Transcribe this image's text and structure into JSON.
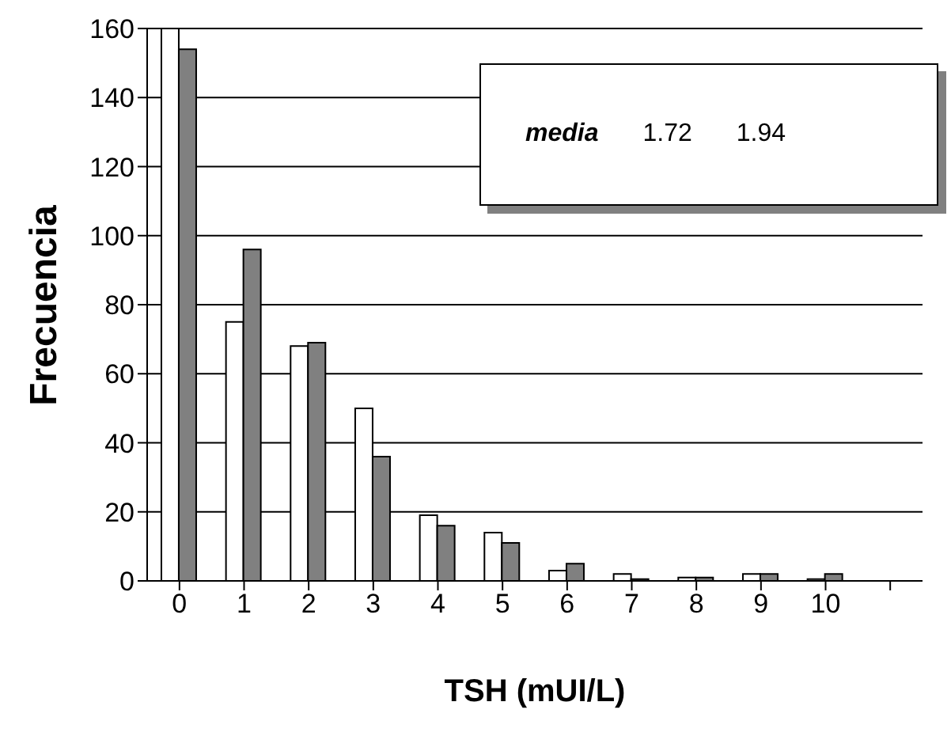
{
  "chart_data": {
    "type": "bar",
    "xlabel": "TSH (mUI/L)",
    "ylabel": "Frecuencia",
    "categories": [
      "0",
      "1",
      "2",
      "3",
      "4",
      "5",
      "6",
      "7",
      "8",
      "9",
      "10",
      null
    ],
    "series": [
      {
        "color": "#ffffff",
        "values": [
          160,
          75,
          68,
          50,
          19,
          14,
          3,
          2,
          1,
          2,
          0.5,
          null
        ]
      },
      {
        "color": "#808080",
        "values": [
          154,
          96,
          69,
          36,
          16,
          11,
          5,
          0.5,
          1,
          2,
          2,
          null
        ]
      }
    ],
    "ylim": [
      0,
      160
    ],
    "yticks": [
      0,
      20,
      40,
      60,
      80,
      100,
      120,
      140,
      160
    ],
    "grid": "y",
    "annotations": [
      "media",
      "1.72",
      "1.94"
    ]
  }
}
